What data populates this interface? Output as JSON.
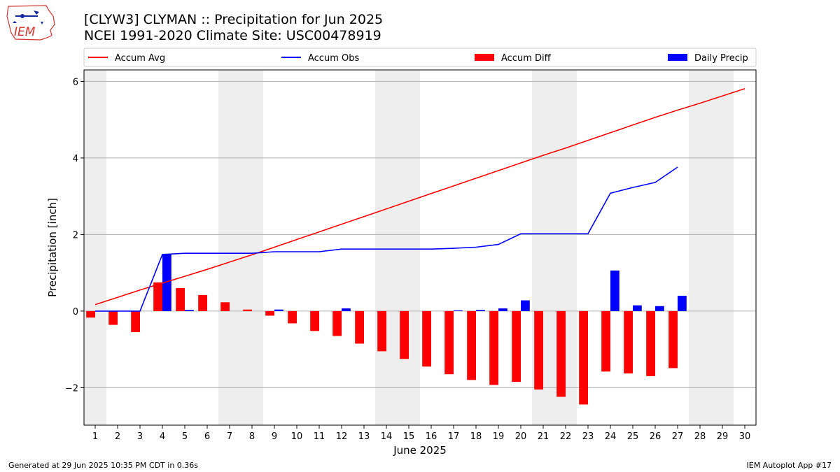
{
  "header": {
    "title_line1": "[CLYW3] CLYMAN :: Precipitation for Jun 2025",
    "title_line2": "NCEI 1991-2020 Climate Site: USC00478919",
    "logo_text": "IEM"
  },
  "footer": {
    "left": "Generated at 29 Jun 2025 10:35 PM CDT in 0.36s",
    "right": "IEM Autoplot App #17"
  },
  "chart_data": {
    "type": "bar",
    "title": "[CLYW3] CLYMAN :: Precipitation for Jun 2025",
    "subtitle": "NCEI 1991-2020 Climate Site: USC00478919",
    "xlabel": "June 2025",
    "ylabel": "Precipitation [inch]",
    "x": [
      1,
      2,
      3,
      4,
      5,
      6,
      7,
      8,
      9,
      10,
      11,
      12,
      13,
      14,
      15,
      16,
      17,
      18,
      19,
      20,
      21,
      22,
      23,
      24,
      25,
      26,
      27,
      28,
      29,
      30
    ],
    "xlim": [
      0.5,
      30.5
    ],
    "ylim": [
      -2.98,
      6.3
    ],
    "yticks": [
      -2,
      0,
      2,
      4,
      6
    ],
    "ytick_labels": [
      "−2",
      "0",
      "2",
      "4",
      "6"
    ],
    "grid": "horizontal",
    "legend_position": "top",
    "weekend_shading": [
      [
        0.5,
        1.5
      ],
      [
        6.5,
        8.5
      ],
      [
        13.5,
        15.5
      ],
      [
        20.5,
        22.5
      ],
      [
        27.5,
        29.5
      ]
    ],
    "series": [
      {
        "name": "Accum Avg",
        "kind": "line",
        "color": "#ff0000",
        "values": [
          0.17,
          0.36,
          0.55,
          0.73,
          0.91,
          1.09,
          1.28,
          1.47,
          1.67,
          1.87,
          2.07,
          2.27,
          2.47,
          2.67,
          2.87,
          3.07,
          3.27,
          3.47,
          3.67,
          3.87,
          4.07,
          4.26,
          4.46,
          4.66,
          4.86,
          5.06,
          5.25,
          5.43,
          5.62,
          5.81
        ]
      },
      {
        "name": "Accum Obs",
        "kind": "line",
        "color": "#0000ff",
        "values": [
          0.0,
          0.0,
          0.0,
          1.48,
          1.51,
          1.51,
          1.51,
          1.51,
          1.55,
          1.55,
          1.55,
          1.62,
          1.62,
          1.62,
          1.62,
          1.62,
          1.64,
          1.67,
          1.74,
          2.02,
          2.02,
          2.02,
          2.02,
          3.08,
          3.23,
          3.36,
          3.76,
          null,
          null,
          null
        ]
      },
      {
        "name": "Accum Diff",
        "kind": "bar",
        "color": "#ff0000",
        "values": [
          -0.17,
          -0.36,
          -0.55,
          0.75,
          0.6,
          0.42,
          0.23,
          0.04,
          -0.12,
          -0.32,
          -0.52,
          -0.65,
          -0.85,
          -1.05,
          -1.25,
          -1.45,
          -1.65,
          -1.8,
          -1.93,
          -1.85,
          -2.05,
          -2.24,
          -2.44,
          -1.58,
          -1.63,
          -1.7,
          -1.49,
          null,
          null,
          null
        ]
      },
      {
        "name": "Daily Precip",
        "kind": "bar",
        "color": "#0000ff",
        "values": [
          0.0,
          0.0,
          0.0,
          1.48,
          0.03,
          0.0,
          0.0,
          0.0,
          0.04,
          0.0,
          0.0,
          0.07,
          0.0,
          0.0,
          0.0,
          0.0,
          0.02,
          0.03,
          0.07,
          0.28,
          0.0,
          0.0,
          0.0,
          1.06,
          0.15,
          0.13,
          0.4,
          null,
          null,
          null
        ]
      }
    ]
  }
}
